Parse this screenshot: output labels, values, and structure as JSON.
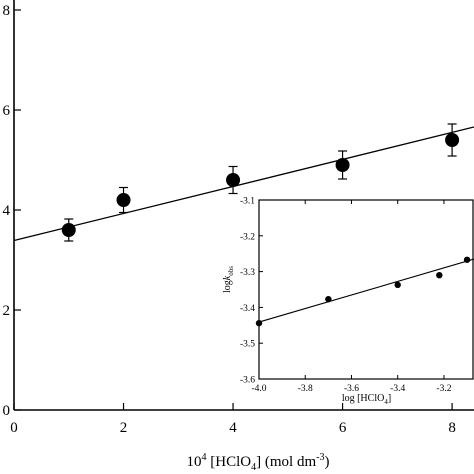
{
  "chart_data": [
    {
      "type": "scatter",
      "title": "",
      "xlabel": "10⁴ [HClO₄] (mol dm⁻³)",
      "xlabel_parts": {
        "pre": "10",
        "sup1": "4",
        "mid": " [HClO",
        "sub1": "4",
        "post": "] (mol dm",
        "sup2": "-3",
        "end": ")"
      },
      "ylabel": "",
      "xlim": [
        0,
        8.4
      ],
      "ylim": [
        0,
        8
      ],
      "x_ticks": [
        0,
        2,
        4,
        6,
        8
      ],
      "y_ticks": [
        0,
        2,
        4,
        6,
        8
      ],
      "y_tick_labels": [
        "0",
        "2",
        "4",
        "6",
        "8"
      ],
      "series": [
        {
          "x": [
            1,
            2,
            4,
            6,
            8
          ],
          "y": [
            3.6,
            4.2,
            4.6,
            4.9,
            5.4
          ],
          "yerr": [
            0.22,
            0.25,
            0.27,
            0.28,
            0.32
          ]
        }
      ],
      "fit_line": {
        "x": [
          0,
          8.4
        ],
        "y": [
          3.39,
          5.66
        ]
      },
      "grid": false,
      "legend": "none",
      "markers": "filled circles with error bars",
      "color": "#000000"
    },
    {
      "type": "scatter",
      "title": "",
      "xlabel": "log [HClO₄]",
      "xlabel_parts": {
        "pre": "log [HClO",
        "sub1": "4",
        "post": "]"
      },
      "ylabel": "log k_obs",
      "ylabel_parts": {
        "pre": "log",
        "italic": "k",
        "sub1": "obs"
      },
      "xlim": [
        -4.0,
        -3.07
      ],
      "ylim": [
        -3.6,
        -3.1
      ],
      "x_ticks": [
        -4.0,
        -3.8,
        -3.6,
        -3.4,
        -3.2
      ],
      "x_tick_labels": [
        "-4.0",
        "-3.8",
        "-3.6",
        "-3.4",
        "-3.2"
      ],
      "y_ticks": [
        -3.6,
        -3.5,
        -3.4,
        -3.3,
        -3.2,
        -3.1
      ],
      "y_tick_labels": [
        "-3.6",
        "-3.5",
        "-3.4",
        "-3.3",
        "-3.2",
        "-3.1"
      ],
      "series": [
        {
          "x": [
            -4.0,
            -3.7,
            -3.4,
            -3.22,
            -3.1
          ],
          "y": [
            -3.444,
            -3.377,
            -3.337,
            -3.31,
            -3.267
          ]
        }
      ],
      "fit_line": {
        "x": [
          -4.0,
          -3.07
        ],
        "y": [
          -3.441,
          -3.265
        ]
      },
      "grid": false,
      "legend": "none",
      "markers": "small filled circles",
      "color": "#000000"
    }
  ]
}
